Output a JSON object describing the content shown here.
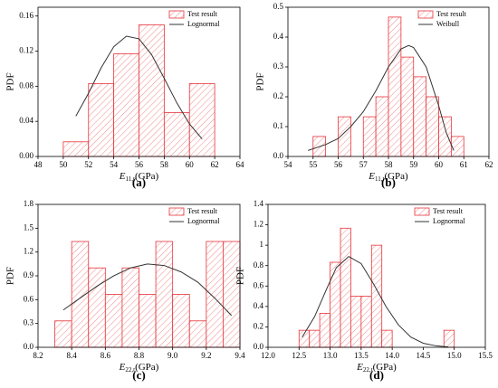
{
  "chart_data": [
    {
      "type": "histogram",
      "panel_label": "(a)",
      "y_label": "PDF",
      "x_label": "E",
      "x_label_subscript": "11,t",
      "x_label_unit": "(GPa)",
      "legend": "upper right",
      "bins": [
        50,
        52,
        54,
        56,
        58,
        60,
        62
      ],
      "series": [
        {
          "name": "Test result",
          "color": "#e8343a",
          "values": [
            0.0167,
            0.083,
            0.117,
            0.15,
            0.05,
            0.083
          ]
        },
        {
          "name": "Lognormal",
          "color": "#333333",
          "x": [
            51,
            52,
            53,
            54,
            55,
            56,
            57,
            58,
            59,
            60,
            61
          ],
          "values": [
            0.046,
            0.072,
            0.101,
            0.125,
            0.137,
            0.134,
            0.116,
            0.089,
            0.061,
            0.037,
            0.02
          ]
        }
      ],
      "xlim": [
        48,
        64
      ],
      "xticks": [
        48,
        50,
        52,
        54,
        56,
        58,
        60,
        62,
        64
      ],
      "ylim": [
        0,
        0.17
      ],
      "yticks": [
        {
          "value": 0,
          "label": "0.00"
        },
        0.04,
        0.08,
        0.12,
        0.16
      ]
    },
    {
      "type": "histogram",
      "panel_label": "(b)",
      "y_label": "PDF",
      "x_label": "E",
      "x_label_subscript": "11,t",
      "x_label_unit": "(GPa)",
      "legend": "upper right",
      "bins": [
        55,
        55.5,
        56,
        56.5,
        57,
        57.5,
        58,
        58.5,
        59,
        59.5,
        60,
        60.5,
        61
      ],
      "series": [
        {
          "name": "Test result",
          "color": "#e8343a",
          "values": [
            0.067,
            0,
            0.133,
            0,
            0.133,
            0.2,
            0.467,
            0.333,
            0.267,
            0.2,
            0.133,
            0.067
          ]
        },
        {
          "name": "Weibull",
          "color": "#333333",
          "x": [
            54.8,
            55.5,
            56,
            56.5,
            57,
            57.5,
            58,
            58.5,
            58.8,
            59,
            59.5,
            60,
            60.3,
            60.6
          ],
          "values": [
            0.02,
            0.04,
            0.06,
            0.1,
            0.15,
            0.22,
            0.3,
            0.36,
            0.372,
            0.365,
            0.3,
            0.17,
            0.08,
            0.02
          ]
        }
      ],
      "xlim": [
        54,
        62
      ],
      "xticks": [
        54,
        55,
        56,
        57,
        58,
        59,
        60,
        61,
        62
      ],
      "ylim": [
        0,
        0.5
      ],
      "yticks": [
        {
          "value": 0,
          "label": "0.0"
        },
        0.1,
        0.2,
        0.3,
        0.4,
        0.5
      ]
    },
    {
      "type": "histogram",
      "panel_label": "(c)",
      "y_label": "PDF",
      "x_label": "E",
      "x_label_subscript": "22,t",
      "x_label_unit": "(GPa)",
      "legend": "upper right",
      "bins": [
        8.3,
        8.4,
        8.5,
        8.6,
        8.7,
        8.8,
        8.9,
        9.0,
        9.1,
        9.2,
        9.3,
        9.4
      ],
      "series": [
        {
          "name": "Test result",
          "color": "#e8343a",
          "values": [
            0.333,
            1.333,
            1.0,
            0.667,
            1.0,
            0.667,
            1.333,
            0.667,
            0.333,
            1.333,
            1.333
          ]
        },
        {
          "name": "Lognormal",
          "color": "#333333",
          "x": [
            8.35,
            8.45,
            8.55,
            8.65,
            8.75,
            8.85,
            8.95,
            9.05,
            9.15,
            9.25,
            9.35
          ],
          "values": [
            0.47,
            0.62,
            0.77,
            0.9,
            1.0,
            1.05,
            1.03,
            0.95,
            0.82,
            0.62,
            0.4
          ]
        }
      ],
      "xlim": [
        8.2,
        9.4
      ],
      "xticks": [
        8.2,
        8.4,
        8.6,
        8.8,
        {
          "value": 9,
          "label": "9.0"
        },
        9.2,
        9.4
      ],
      "ylim": [
        0,
        1.8
      ],
      "yticks": [
        {
          "value": 0,
          "label": "0.0"
        },
        0.3,
        0.6,
        0.9,
        1.2,
        1.5,
        1.8
      ]
    },
    {
      "type": "histogram",
      "panel_label": "(d)",
      "y_label": "PDF",
      "x_label": "E",
      "x_label_subscript": "22,t",
      "x_label_unit": "(GPa)",
      "legend": "upper right",
      "bins": [
        12.5,
        12.667,
        12.833,
        13.0,
        13.167,
        13.333,
        13.5,
        13.667,
        13.833,
        14.0,
        14.167,
        14.333,
        14.5,
        14.667,
        14.833,
        15.0
      ],
      "series": [
        {
          "name": "Test result",
          "color": "#e8343a",
          "values": [
            0.167,
            0.167,
            0.333,
            0.833,
            1.167,
            0.5,
            0.5,
            1.0,
            0.167,
            0,
            0,
            0,
            0,
            0,
            0.167
          ]
        },
        {
          "name": "Lognormal",
          "color": "#333333",
          "x": [
            12.55,
            12.75,
            12.95,
            13.1,
            13.3,
            13.5,
            13.7,
            13.9,
            14.1,
            14.3,
            14.5,
            14.7,
            14.9
          ],
          "values": [
            0.1,
            0.3,
            0.58,
            0.78,
            0.89,
            0.82,
            0.62,
            0.4,
            0.22,
            0.1,
            0.04,
            0.015,
            0.003
          ]
        }
      ],
      "xlim": [
        12,
        15.5
      ],
      "xticks": [
        {
          "value": 12,
          "label": "12.0"
        },
        12.5,
        {
          "value": 13,
          "label": "13.0"
        },
        13.5,
        {
          "value": 14,
          "label": "14.0"
        },
        14.5,
        {
          "value": 15,
          "label": "15.0"
        },
        15.5
      ],
      "ylim": [
        0,
        1.4
      ],
      "yticks": [
        {
          "value": 0,
          "label": "0.0"
        },
        0.2,
        0.4,
        0.6,
        0.8,
        1.0,
        1.2,
        1.4
      ]
    }
  ]
}
